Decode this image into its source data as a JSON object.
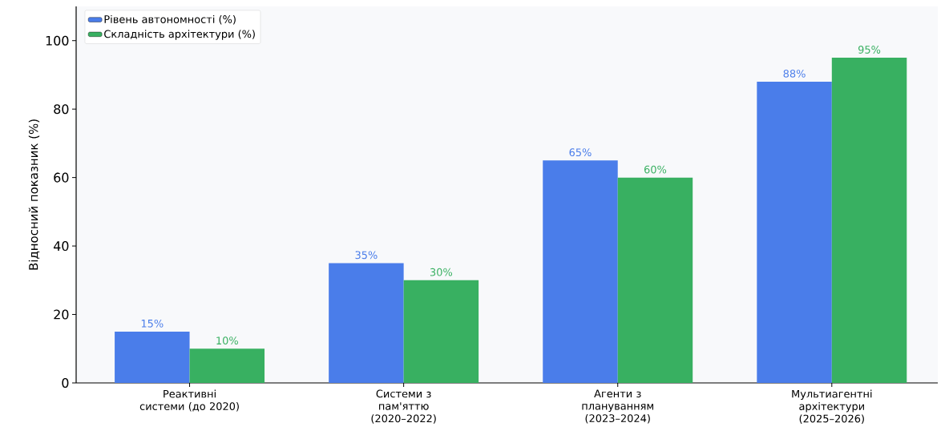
{
  "chart_data": {
    "type": "bar",
    "ylabel": "Відносний показник (%)",
    "categories": [
      "Реактивні системи (до 2020)",
      "Системи з пам'яттю (2020–2022)",
      "Агенти з плануванням (2023–2024)",
      "Мультиагентні архітектури (2025–2026)"
    ],
    "series": [
      {
        "name": "Рівень автономності (%)",
        "color": "#4a7dea",
        "values": [
          15,
          35,
          65,
          88
        ],
        "value_labels": [
          "15%",
          "35%",
          "65%",
          "88%"
        ]
      },
      {
        "name": "Складність архітектури (%)",
        "color": "#38b061",
        "values": [
          10,
          30,
          60,
          95
        ],
        "value_labels": [
          "10%",
          "30%",
          "60%",
          "95%"
        ]
      }
    ],
    "ylim": [
      0,
      110
    ],
    "yticks": [
      0,
      20,
      40,
      60,
      80,
      100
    ],
    "grid": false,
    "legend": "top left"
  }
}
